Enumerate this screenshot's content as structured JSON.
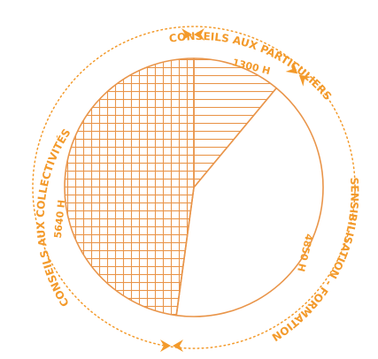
{
  "colors": {
    "accent": "#f39a2b",
    "stroke": "#e9954a",
    "background": "#ffffff"
  },
  "chart_data": {
    "type": "pie",
    "unit": "H",
    "slices": [
      {
        "label": "CONSEILS AUX PARTICULIERS",
        "value": 1300,
        "value_label": "1300 H",
        "pattern": "horizontal-lines"
      },
      {
        "label": "SENSIBILISATION - FORMATION",
        "value": 4850,
        "value_label": "4850 H",
        "pattern": "none"
      },
      {
        "label": "CONSEILS AUX COLLECTIVITÉS",
        "value": 5640,
        "value_label": "5640 H",
        "pattern": "crosshatch"
      }
    ],
    "legend": "none",
    "outer_ring": "dotted",
    "separator_icon": "arrowhead-pair-icon"
  }
}
